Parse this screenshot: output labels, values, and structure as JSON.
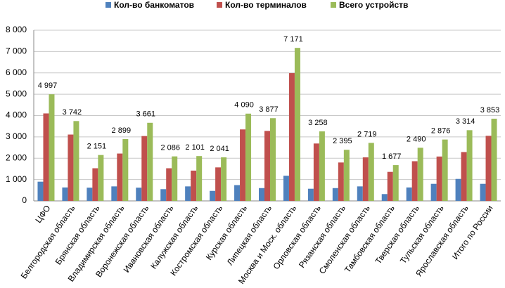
{
  "chart_data": {
    "type": "bar",
    "categories": [
      "ЦФО",
      "Белгородская область",
      "Брянская область",
      "Владимирская область",
      "Воронежская область",
      "Ивановская область",
      "Калужская область",
      "Костромская область",
      "Курская область",
      "Липецкая область",
      "Москва и Моск. область",
      "Орловская область",
      "Рязанская область",
      "Смоленская область",
      "Тамбовская область",
      "Тверская область",
      "Тульская область",
      "Ярославская область",
      "Итого по России"
    ],
    "series": [
      {
        "name": "Кол-во банкоматов",
        "color": "#4f81bd",
        "values": [
          900,
          630,
          620,
          680,
          620,
          550,
          680,
          470,
          740,
          600,
          1180,
          570,
          600,
          680,
          320,
          630,
          800,
          1030,
          800
        ]
      },
      {
        "name": "Кол-во терминалов",
        "color": "#c0504d",
        "values": [
          4100,
          3110,
          1530,
          2220,
          3040,
          1530,
          1420,
          1570,
          3350,
          3280,
          5990,
          2690,
          1800,
          2040,
          1360,
          1860,
          2080,
          2290,
          3050
        ]
      },
      {
        "name": "Всего устройств",
        "color": "#9bbb59",
        "values": [
          4997,
          3742,
          2151,
          2899,
          3661,
          2086,
          2101,
          2041,
          4090,
          3877,
          7171,
          3258,
          2395,
          2719,
          1677,
          2490,
          2876,
          3314,
          3853
        ],
        "value_labels": [
          "4 997",
          "3 742",
          "2 151",
          "2 899",
          "3 661",
          "2 086",
          "2 101",
          "2 041",
          "4 090",
          "3 877",
          "7 171",
          "3 258",
          "2 395",
          "2 719",
          "1 677",
          "2 490",
          "2 876",
          "3 314",
          "3 853"
        ]
      }
    ],
    "ylim": [
      0,
      8000
    ],
    "yticks": [
      0,
      {
        "value": 1000,
        "label": "1 000"
      },
      {
        "value": 2000,
        "label": "2 000"
      },
      {
        "value": 3000,
        "label": "3 000"
      },
      {
        "value": 4000,
        "label": "4 000"
      },
      {
        "value": 5000,
        "label": "5 000"
      },
      {
        "value": 6000,
        "label": "6 000"
      },
      {
        "value": 7000,
        "label": "7 000"
      },
      {
        "value": 8000,
        "label": "8 000"
      }
    ],
    "grid": true,
    "legend": "top"
  }
}
